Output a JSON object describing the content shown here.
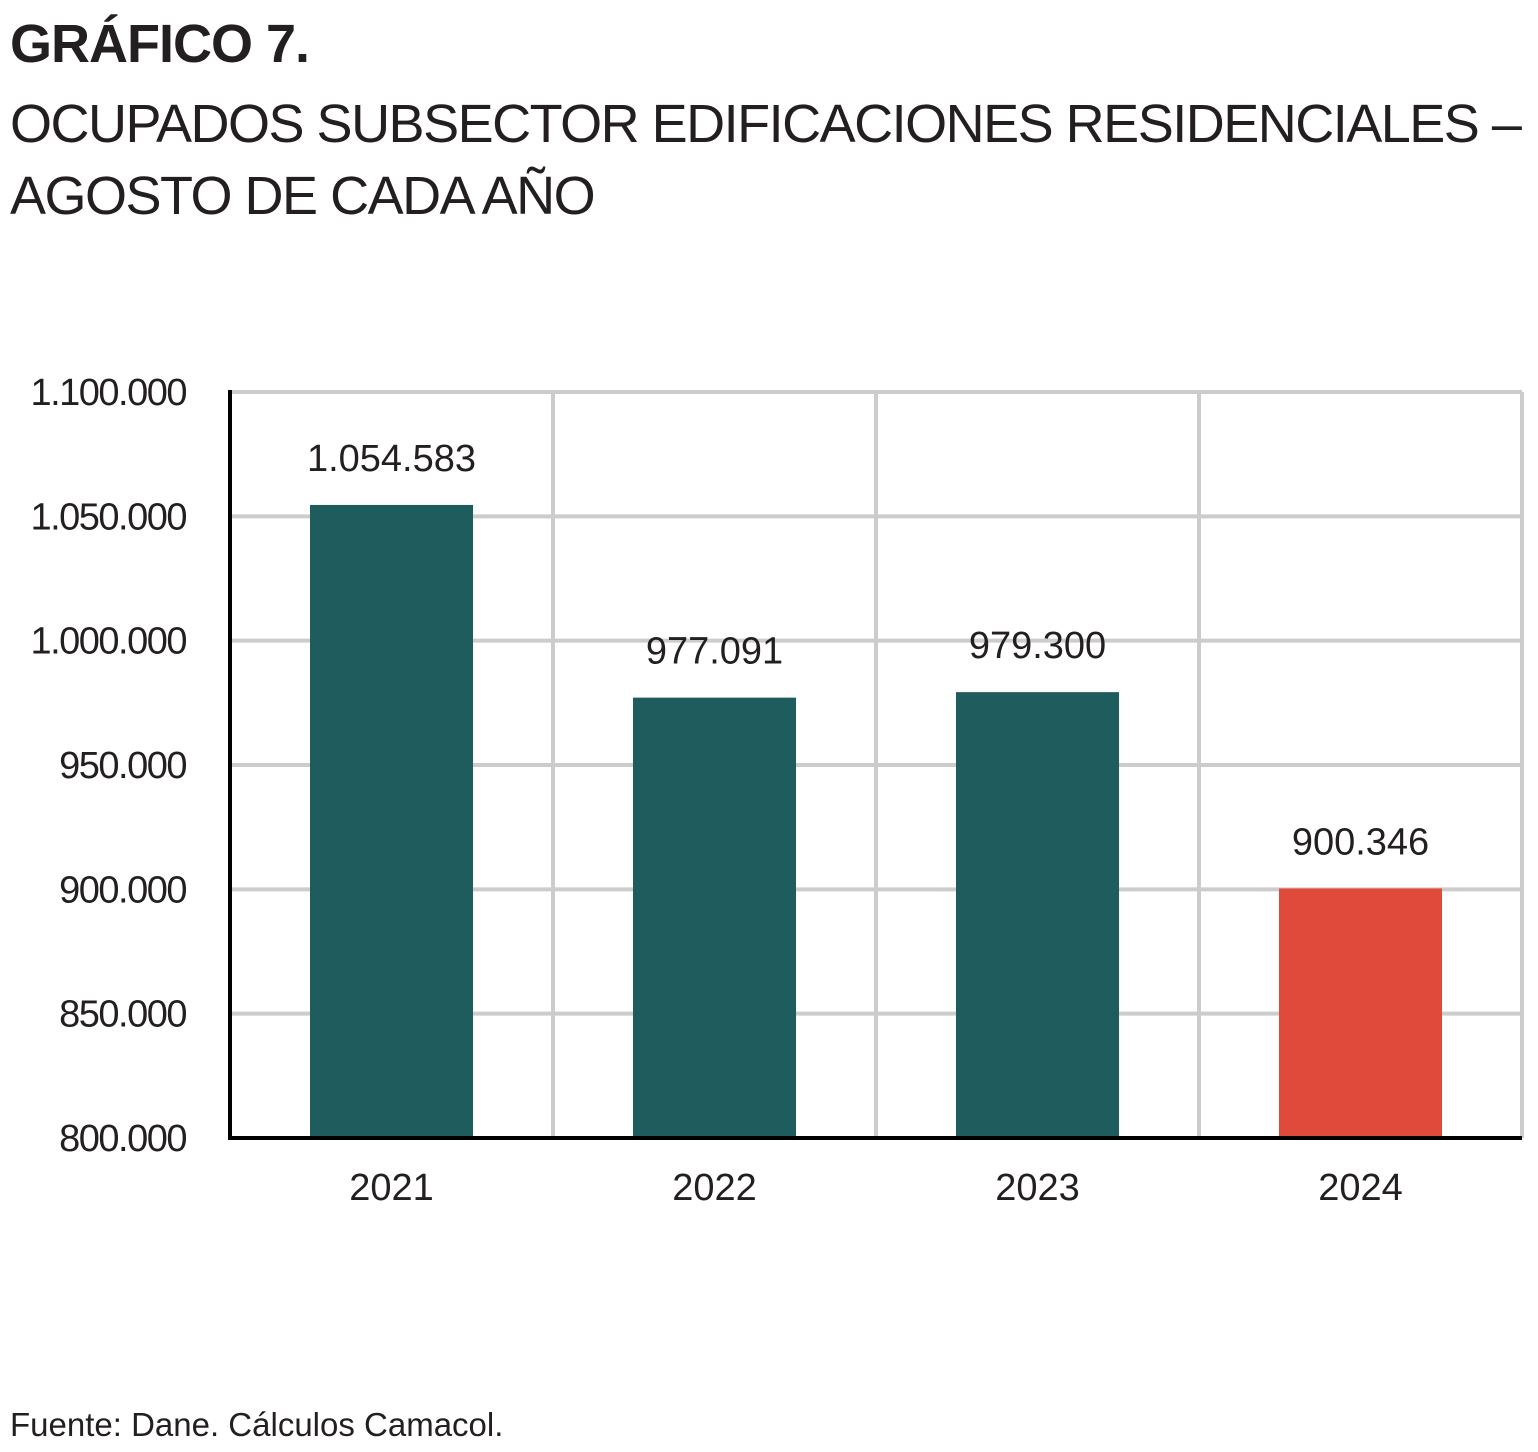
{
  "header": {
    "heading": "GRÁFICO 7.",
    "subtitle_line1": "OCUPADOS SUBSECTOR EDIFICACIONES RESIDENCIALES –",
    "subtitle_line2": "AGOSTO DE CADA AÑO"
  },
  "source": "Fuente: Dane. Cálculos Camacol.",
  "chart_data": {
    "type": "bar",
    "categories": [
      "2021",
      "2022",
      "2023",
      "2024"
    ],
    "values": [
      1054583,
      977091,
      979300,
      900346
    ],
    "data_labels": [
      "1.054.583",
      "977.091",
      "979.300",
      "900.346"
    ],
    "bar_colors": [
      "#1f5c5e",
      "#1f5c5e",
      "#1f5c5e",
      "#e04a3b"
    ],
    "ylim": [
      800000,
      1100000
    ],
    "yticks": [
      800000,
      850000,
      900000,
      950000,
      1000000,
      1050000,
      1100000
    ],
    "ytick_labels": [
      "800.000",
      "850.000",
      "900.000",
      "950.000",
      "1.000.000",
      "1.050.000",
      "1.100.000"
    ],
    "grid": true,
    "grid_color": "#cccccc",
    "axis_color": "#000000",
    "title": "",
    "xlabel": "",
    "ylabel": ""
  }
}
